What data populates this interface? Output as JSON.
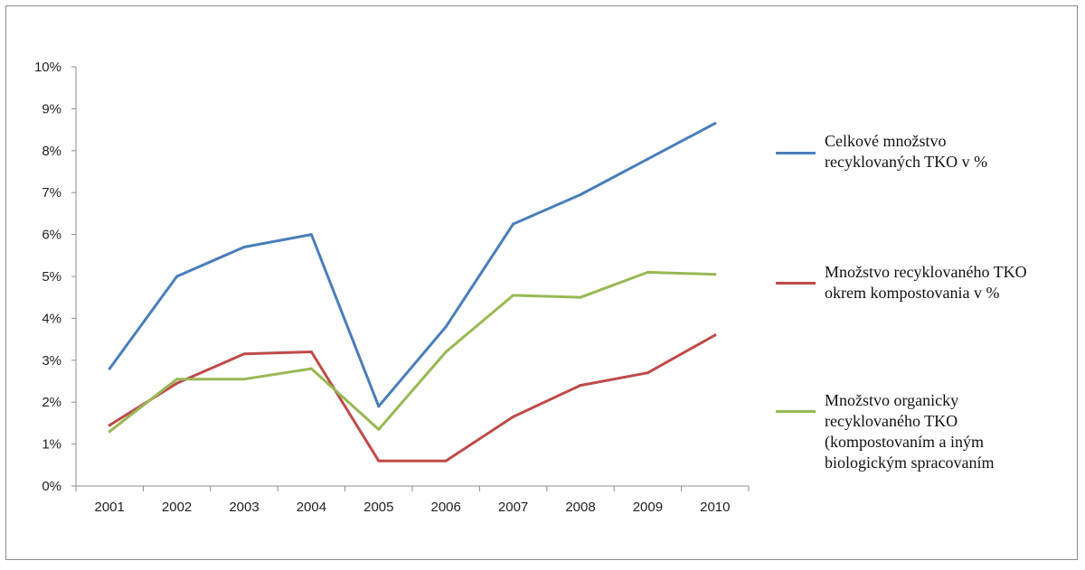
{
  "chart_data": {
    "type": "line",
    "categories": [
      "2001",
      "2002",
      "2003",
      "2004",
      "2005",
      "2006",
      "2007",
      "2008",
      "2009",
      "2010"
    ],
    "y_ticks": [
      "0%",
      "1%",
      "2%",
      "3%",
      "4%",
      "5%",
      "6%",
      "7%",
      "8%",
      "9%",
      "10%"
    ],
    "ylim": [
      0,
      10
    ],
    "grid": false,
    "legend_position": "right",
    "series": [
      {
        "name": "Celkové množstvo\nrecyklovaných TKO v %",
        "color": "#4a7ebb",
        "values": [
          2.8,
          5.0,
          5.7,
          6.0,
          1.9,
          3.8,
          6.25,
          6.95,
          7.8,
          8.65
        ]
      },
      {
        "name": "Množstvo recyklovaného TKO\nokrem kompostovania v %",
        "color": "#be4b48",
        "values": [
          1.45,
          2.45,
          3.15,
          3.2,
          0.6,
          0.6,
          1.65,
          2.4,
          2.7,
          3.6
        ]
      },
      {
        "name": "Množstvo organicky\nrecyklovaného TKO\n(kompostovaním a iným\nbiologickým spracovaním",
        "color": "#98b954",
        "values": [
          1.3,
          2.55,
          2.55,
          2.8,
          1.35,
          3.2,
          4.55,
          4.5,
          5.1,
          5.05
        ]
      }
    ]
  }
}
